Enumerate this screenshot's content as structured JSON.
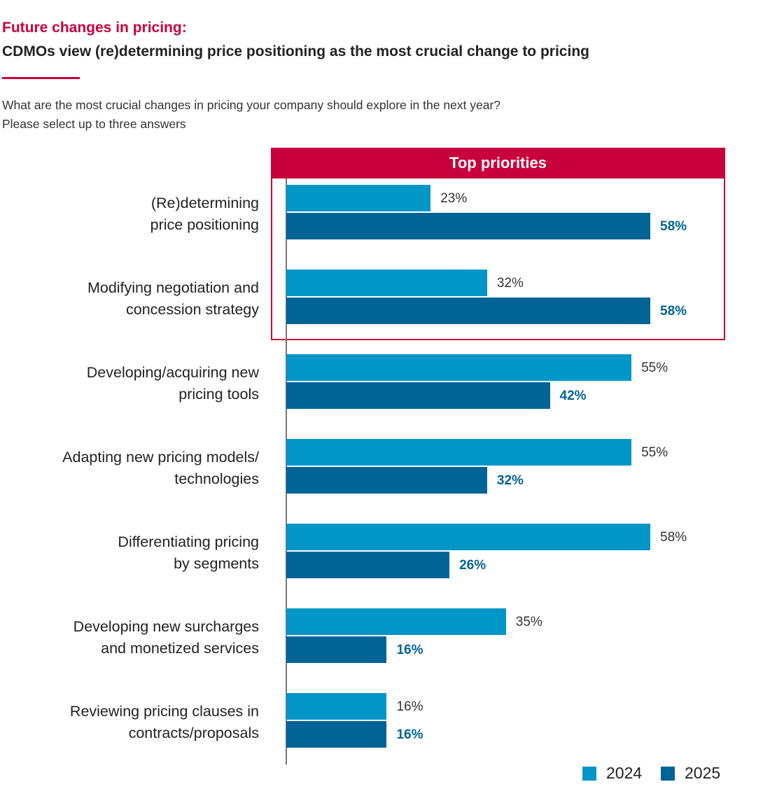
{
  "header": {
    "kicker": "Future changes in pricing:",
    "title": "CDMOs view (re)determining price positioning as the most crucial change to pricing",
    "question": "What are the most crucial changes in pricing your company should explore in the next year?",
    "instruction": "Please select up to three answers"
  },
  "highlight": {
    "label": "Top priorities"
  },
  "colors": {
    "s2024": "#0096c8",
    "s2025": "#006496",
    "accent": "#c8003c"
  },
  "chart_data": {
    "type": "bar",
    "orientation": "horizontal",
    "categories": [
      [
        "(Re)determining",
        "price positioning"
      ],
      [
        "Modifying negotiation and",
        "concession strategy"
      ],
      [
        "Developing/acquiring new",
        "pricing tools"
      ],
      [
        "Adapting new pricing models/",
        "technologies"
      ],
      [
        "Differentiating pricing",
        "by segments"
      ],
      [
        "Developing new surcharges",
        "and monetized services"
      ],
      [
        "Reviewing pricing clauses in",
        "contracts/proposals"
      ]
    ],
    "series": [
      {
        "name": "2024",
        "values": [
          23,
          32,
          55,
          55,
          58,
          35,
          16
        ]
      },
      {
        "name": "2025",
        "values": [
          58,
          58,
          42,
          32,
          26,
          16,
          16
        ]
      }
    ],
    "unit": "%",
    "xlim": [
      0,
      58
    ],
    "legend": "bottom-right"
  }
}
